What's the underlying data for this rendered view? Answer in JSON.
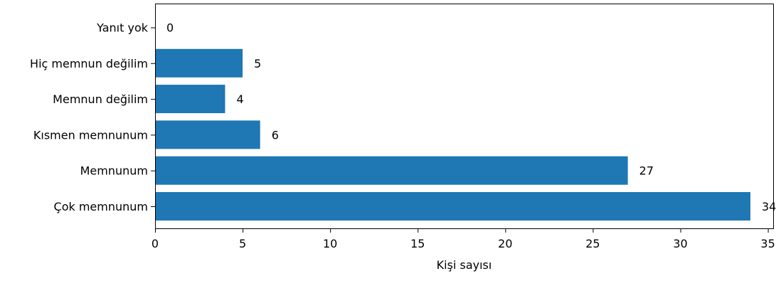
{
  "chart_data": {
    "type": "bar",
    "orientation": "horizontal",
    "categories": [
      "Çok memnunum",
      "Memnunum",
      "Kısmen memnunum",
      "Memnun değilim",
      "Hiç memnun değilim",
      "Yanıt yok"
    ],
    "values": [
      34,
      27,
      6,
      4,
      5,
      0
    ],
    "value_labels": [
      "34",
      "27",
      "6",
      "4",
      "5",
      "0"
    ],
    "title": "",
    "xlabel": "Kişi sayısı",
    "ylabel": "",
    "xlim": [
      0,
      35.3
    ],
    "x_ticks": [
      0,
      5,
      10,
      15,
      20,
      25,
      30,
      35
    ],
    "x_tick_labels": [
      "0",
      "5",
      "10",
      "15",
      "20",
      "25",
      "30",
      "35"
    ],
    "grid": false,
    "legend": "none",
    "bar_color": "#1f77b4"
  }
}
